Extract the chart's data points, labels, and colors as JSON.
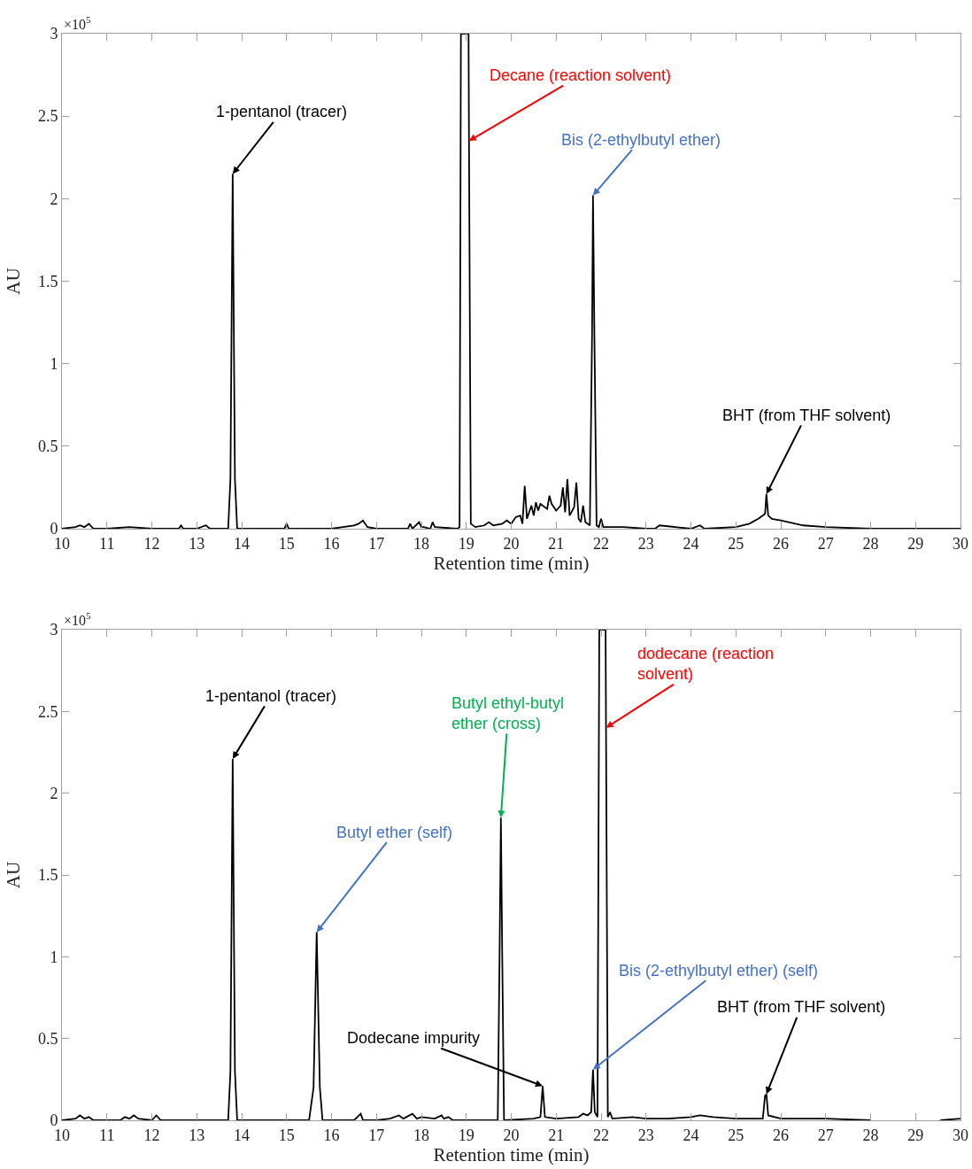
{
  "chart_data": [
    {
      "type": "line",
      "xlabel": "Retention time (min)",
      "ylabel": "AU",
      "color": "#000000",
      "xlim": [
        10,
        30
      ],
      "xticks": [
        10,
        11,
        12,
        13,
        14,
        15,
        16,
        17,
        18,
        19,
        20,
        21,
        22,
        23,
        24,
        25,
        26,
        27,
        28,
        29,
        30
      ],
      "ylim": [
        0,
        3
      ],
      "yticks": [
        0,
        0.5,
        1,
        1.5,
        2,
        2.5,
        3
      ],
      "grid": false,
      "x": [
        10,
        10.3,
        10.4,
        10.5,
        10.6,
        10.7,
        11,
        11.5,
        12,
        12.6,
        12.65,
        12.7,
        13,
        13.2,
        13.3,
        13.7,
        13.75,
        13.8,
        13.85,
        13.9,
        14.5,
        14.95,
        15,
        15.05,
        16,
        16.5,
        16.6,
        16.7,
        16.8,
        17,
        17.7,
        17.75,
        17.8,
        17.95,
        18,
        18.05,
        18.2,
        18.25,
        18.3,
        18.8,
        18.85,
        18.88,
        19.05,
        19.06,
        19.1,
        19.2,
        19.4,
        19.5,
        19.6,
        19.8,
        19.9,
        20,
        20.1,
        20.2,
        20.25,
        20.3,
        20.35,
        20.45,
        20.5,
        20.55,
        20.6,
        20.65,
        20.8,
        20.85,
        20.9,
        21,
        21.1,
        21.15,
        21.2,
        21.25,
        21.3,
        21.4,
        21.45,
        21.5,
        21.55,
        21.6,
        21.65,
        21.75,
        21.8,
        21.82,
        21.85,
        21.9,
        21.95,
        22,
        22.05,
        22.5,
        23,
        23.2,
        23.3,
        24,
        24.2,
        24.3,
        25,
        25.3,
        25.5,
        25.65,
        25.68,
        25.72,
        25.8,
        26,
        26.5,
        27,
        28,
        30
      ],
      "values": [
        0,
        0.01,
        0.02,
        0.01,
        0.03,
        0,
        0,
        0.01,
        0,
        0,
        0.02,
        0,
        0,
        0.02,
        0,
        0,
        0.3,
        2.15,
        0.3,
        0,
        0,
        0,
        0.03,
        0,
        0,
        0.02,
        0.03,
        0.05,
        0.01,
        0,
        0,
        0.03,
        0,
        0.04,
        0.01,
        0.01,
        0,
        0.04,
        0.01,
        0,
        0.01,
        3,
        3,
        2.35,
        0.03,
        0.01,
        0.02,
        0.04,
        0.02,
        0.03,
        0.05,
        0.03,
        0.07,
        0.08,
        0.03,
        0.26,
        0.06,
        0.14,
        0.08,
        0.16,
        0.11,
        0.15,
        0.12,
        0.2,
        0.15,
        0.11,
        0.14,
        0.25,
        0.1,
        0.3,
        0.08,
        0.13,
        0.28,
        0.06,
        0.04,
        0.14,
        0.04,
        0.02,
        1.2,
        2.02,
        1.2,
        0.02,
        0.01,
        0.06,
        0.01,
        0.01,
        0,
        0,
        0.02,
        0,
        0.02,
        0,
        0.01,
        0.03,
        0.06,
        0.09,
        0.21,
        0.08,
        0.06,
        0.05,
        0.02,
        0.01,
        0,
        0
      ],
      "annotations": [
        "×10$^{5}$",
        {
          "text": "1-pentanol (tracer)",
          "x": 13.8,
          "y": 2.15
        },
        {
          "text": "Decane (reaction solvent)",
          "x": 19.06,
          "y": 2.35
        },
        {
          "text": "Bis (2-ethylbutyl ether)",
          "x": 21.82,
          "y": 2.02
        },
        {
          "text": "BHT (from THF solvent)",
          "x": 25.68,
          "y": 0.21
        }
      ]
    },
    {
      "type": "line",
      "xlabel": "Retention time (min)",
      "ylabel": "AU",
      "color": "#000000",
      "xlim": [
        10,
        30
      ],
      "xticks": [
        10,
        11,
        12,
        13,
        14,
        15,
        16,
        17,
        18,
        19,
        20,
        21,
        22,
        23,
        24,
        25,
        26,
        27,
        28,
        29,
        30
      ],
      "ylim": [
        0,
        3
      ],
      "yticks": [
        0,
        0.5,
        1,
        1.5,
        2,
        2.5,
        3
      ],
      "grid": false,
      "x": [
        10,
        10.3,
        10.4,
        10.5,
        10.6,
        10.7,
        11,
        11.3,
        11.4,
        11.5,
        11.6,
        11.7,
        12,
        12.1,
        12.2,
        13,
        13.7,
        13.75,
        13.8,
        13.85,
        13.9,
        15.5,
        15.6,
        15.67,
        15.74,
        15.8,
        16.5,
        16.65,
        16.7,
        17,
        17.3,
        17.5,
        17.6,
        17.8,
        17.9,
        18,
        18.3,
        18.45,
        18.5,
        18.6,
        18.7,
        19,
        19.5,
        19.7,
        19.74,
        19.77,
        19.8,
        19.84,
        20.5,
        20.65,
        20.7,
        20.75,
        21,
        21.5,
        21.6,
        21.7,
        21.78,
        21.82,
        21.86,
        21.92,
        21.96,
        22.1,
        22.11,
        22.15,
        22.2,
        22.25,
        22.7,
        23,
        23.5,
        24,
        24.2,
        24.5,
        25,
        25.6,
        25.65,
        25.68,
        25.72,
        26,
        27,
        28,
        28.05,
        29.5,
        29.55,
        30
      ],
      "values": [
        0,
        0.01,
        0.03,
        0.01,
        0.02,
        0,
        0,
        0,
        0.02,
        0.01,
        0.03,
        0.01,
        0,
        0.03,
        0,
        0,
        0,
        0.3,
        2.21,
        0.3,
        0,
        0,
        0.2,
        1.15,
        0.2,
        0,
        0,
        0.04,
        0,
        0,
        0.01,
        0.03,
        0.01,
        0.04,
        0.01,
        0.02,
        0.01,
        0.03,
        0.01,
        0.02,
        0,
        0,
        0,
        0,
        1,
        1.85,
        1,
        0,
        0.01,
        0.02,
        0.21,
        0.02,
        0.01,
        0.02,
        0.04,
        0.03,
        0.05,
        0.31,
        0.05,
        0.02,
        3,
        3,
        2.4,
        0.02,
        0.05,
        0.01,
        0.02,
        0.01,
        0.01,
        0.02,
        0.03,
        0.02,
        0.01,
        0.01,
        0.15,
        0.16,
        0.03,
        0.01,
        0.01,
        0,
        null,
        null,
        0,
        0.01
      ],
      "annotations": [
        "×10$^{5}$",
        {
          "text": "1-pentanol (tracer)",
          "x": 13.8,
          "y": 2.21
        },
        {
          "text": "Butyl ether (self)",
          "x": 15.67,
          "y": 1.15
        },
        {
          "text": "Butyl ethyl-butyl\nether (cross)",
          "x": 19.77,
          "y": 1.85
        },
        {
          "text": "dodecane (reaction\nsolvent)",
          "x": 22.11,
          "y": 2.4
        },
        {
          "text": "Dodecane impurity",
          "x": 20.7,
          "y": 0.21
        },
        {
          "text": "Bis (2-ethylbutyl ether) (self)",
          "x": 21.82,
          "y": 0.31
        },
        {
          "text": "BHT (from THF solvent)",
          "x": 25.68,
          "y": 0.16
        }
      ]
    }
  ]
}
